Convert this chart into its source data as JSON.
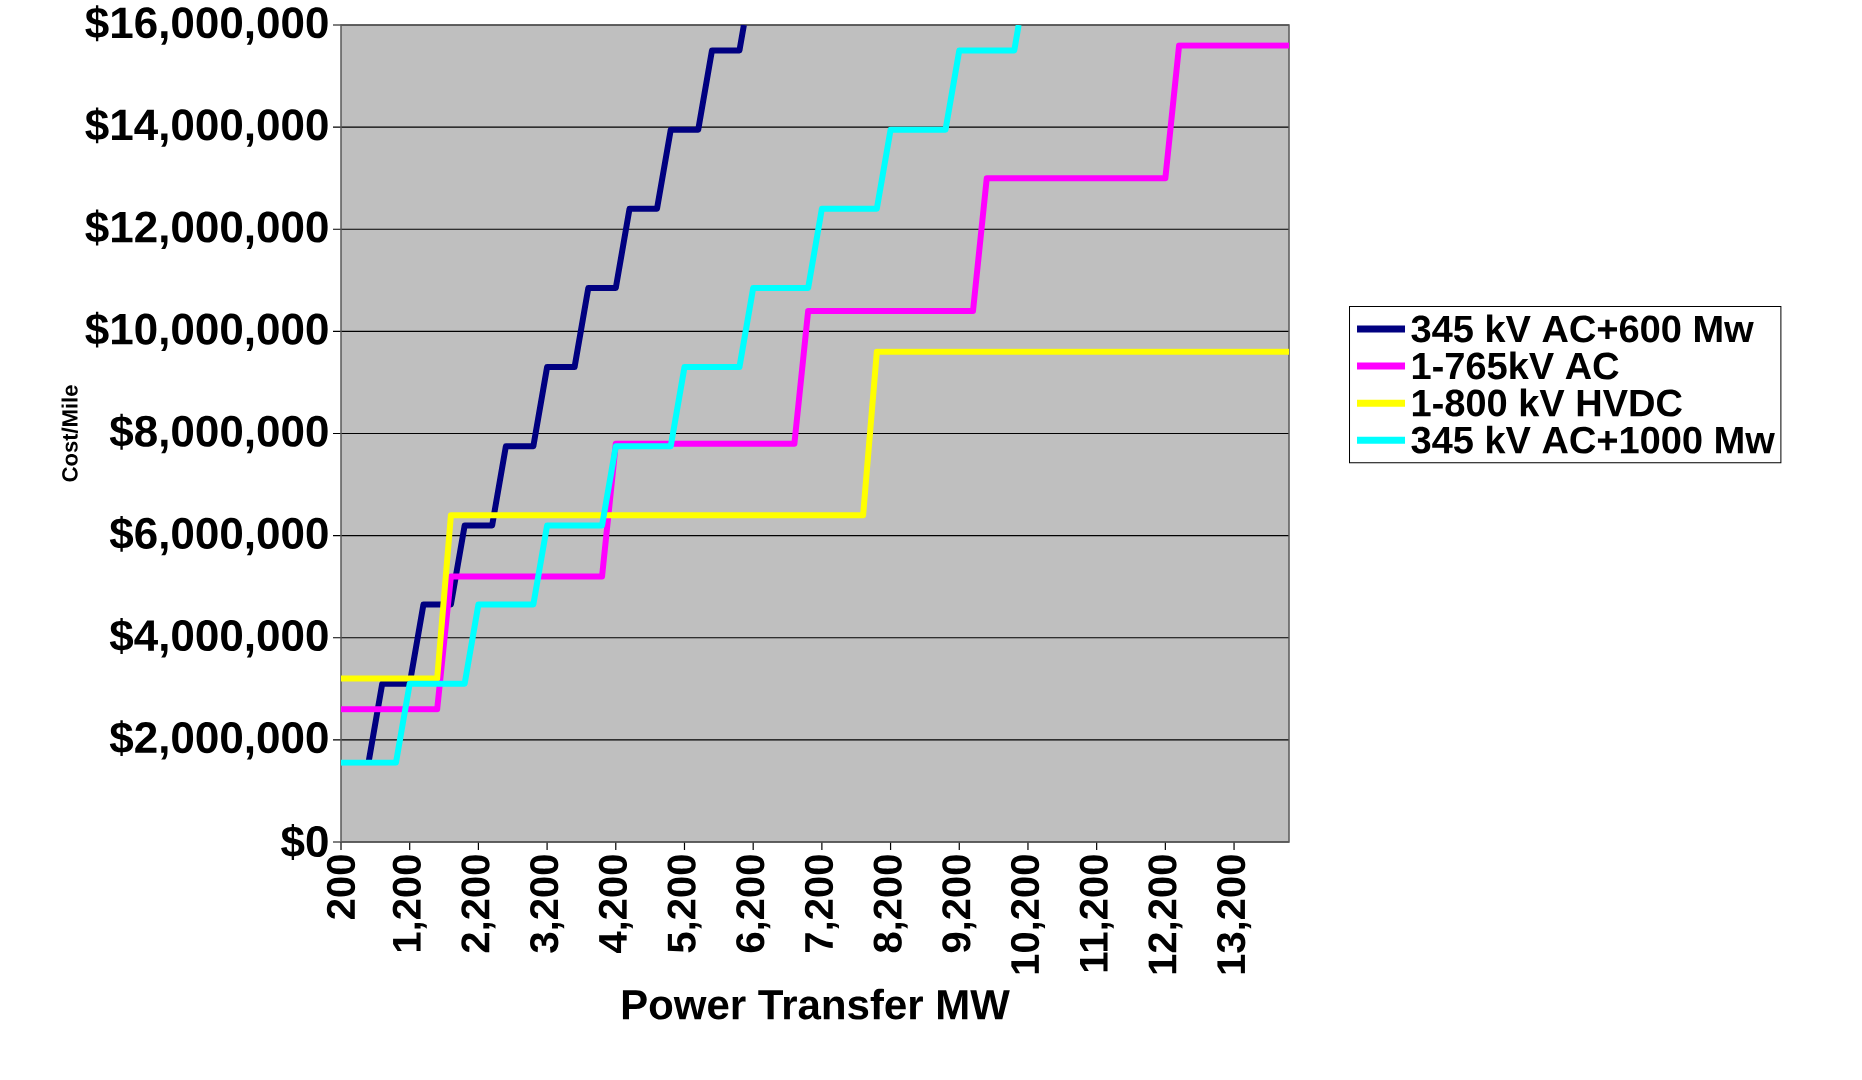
{
  "chart_data": {
    "type": "line",
    "xlabel": "Power Transfer MW",
    "ylabel": "Cost/Mile",
    "xlim": [
      200,
      14000
    ],
    "ylim": [
      0,
      16000000
    ],
    "xticks": [
      200,
      {
        "value": 1200,
        "label": "1,200"
      },
      {
        "value": 2200,
        "label": "2,200"
      },
      {
        "value": 3200,
        "label": "3,200"
      },
      {
        "value": 4200,
        "label": "4,200"
      },
      {
        "value": 5200,
        "label": "5,200"
      },
      {
        "value": 6200,
        "label": "6,200"
      },
      {
        "value": 7200,
        "label": "7,200"
      },
      {
        "value": 8200,
        "label": "8,200"
      },
      {
        "value": 9200,
        "label": "9,200"
      },
      {
        "value": 10200,
        "label": "10,200"
      },
      {
        "value": 11200,
        "label": "11,200"
      },
      {
        "value": 12200,
        "label": "12,200"
      },
      {
        "value": 13200,
        "label": "13,200"
      }
    ],
    "yticks": [
      {
        "value": 0,
        "label": "$0"
      },
      {
        "value": 2000000,
        "label": "$2,000,000"
      },
      {
        "value": 4000000,
        "label": "$4,000,000"
      },
      {
        "value": 6000000,
        "label": "$6,000,000"
      },
      {
        "value": 8000000,
        "label": "$8,000,000"
      },
      {
        "value": 10000000,
        "label": "$10,000,000"
      },
      {
        "value": 12000000,
        "label": "$12,000,000"
      },
      {
        "value": 14000000,
        "label": "$14,000,000"
      },
      {
        "value": 16000000,
        "label": "$16,000,000"
      }
    ],
    "grid": "y",
    "legend": "right",
    "marker": "none",
    "line_style": "solid",
    "series": [
      {
        "name": "345 kV AC+600 Mw",
        "color": "#000080",
        "x": [
          600,
          800,
          1200,
          1400,
          1800,
          2000,
          2400,
          2600,
          3000,
          3200,
          3600,
          3800,
          4200,
          4400,
          4800,
          5000,
          5400,
          5600,
          6000,
          6065
        ],
        "values": [
          1550000,
          3100000,
          3100000,
          4650000,
          4650000,
          6200000,
          6200000,
          7750000,
          7750000,
          9300000,
          9300000,
          10850000,
          10850000,
          12400000,
          12400000,
          13950000,
          13950000,
          15500000,
          15500000,
          16000000
        ]
      },
      {
        "name": "1-765kV AC",
        "color": "#ff00ff",
        "x": [
          200,
          1600,
          1800,
          4000,
          4200,
          6800,
          7000,
          9400,
          9600,
          12200,
          12400,
          14000
        ],
        "values": [
          2600000,
          2600000,
          5200000,
          5200000,
          7800000,
          7800000,
          10400000,
          10400000,
          13000000,
          13000000,
          15600000,
          15600000
        ]
      },
      {
        "name": "1-800 kV HVDC",
        "color": "#ffff00",
        "x": [
          200,
          1600,
          1800,
          7800,
          8000,
          14000
        ],
        "values": [
          3200000,
          3200000,
          6400000,
          6400000,
          9600000,
          9600000
        ]
      },
      {
        "name": "345 kV AC+1000 Mw",
        "color": "#00ffff",
        "x": [
          200,
          1000,
          1200,
          2000,
          2200,
          3000,
          3200,
          4000,
          4200,
          5000,
          5200,
          6000,
          6200,
          7000,
          7200,
          8000,
          8200,
          9000,
          9200,
          10000,
          10065
        ],
        "values": [
          1550000,
          1550000,
          3100000,
          3100000,
          4650000,
          4650000,
          6200000,
          6200000,
          7750000,
          7750000,
          9300000,
          9300000,
          10850000,
          10850000,
          12400000,
          12400000,
          13950000,
          13950000,
          15500000,
          15500000,
          16000000
        ]
      }
    ]
  }
}
